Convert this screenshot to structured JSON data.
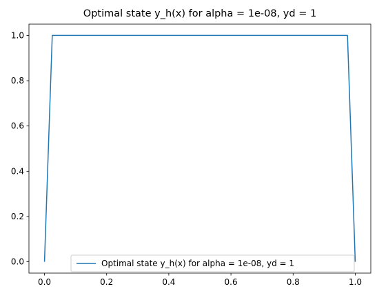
{
  "chart_data": {
    "type": "line",
    "title": "Optimal state y_h(x) for alpha = 1e-08, yd = 1",
    "xlabel": "",
    "ylabel": "",
    "xlim": [
      -0.05,
      1.05
    ],
    "ylim": [
      -0.05,
      1.05
    ],
    "xticks": [
      0.0,
      0.2,
      0.4,
      0.6,
      0.8,
      1.0
    ],
    "xtick_labels": [
      "0.0",
      "0.2",
      "0.4",
      "0.6",
      "0.8",
      "1.0"
    ],
    "yticks": [
      0.0,
      0.2,
      0.4,
      0.6,
      0.8,
      1.0
    ],
    "ytick_labels": [
      "0.0",
      "0.2",
      "0.4",
      "0.6",
      "0.8",
      "1.0"
    ],
    "grid": false,
    "legend_position": "lower-center",
    "series": [
      {
        "name": "Optimal state y_h(x) for alpha = 1e-08, yd = 1",
        "color": "#1f77b4",
        "x": [
          0.0,
          0.025,
          0.975,
          1.0
        ],
        "y": [
          0.0,
          1.0,
          1.0,
          0.0
        ]
      }
    ]
  }
}
